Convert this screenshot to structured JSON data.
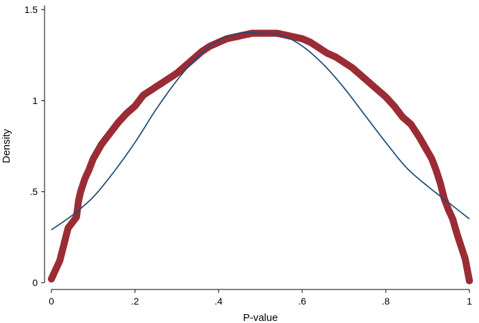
{
  "chart_data": {
    "type": "line",
    "title": "",
    "xlabel": "P-value",
    "ylabel": "Density",
    "xlim": [
      0,
      1
    ],
    "ylim": [
      0,
      1.5
    ],
    "xticks": [
      0,
      0.2,
      0.4,
      0.6,
      0.8,
      1
    ],
    "xtick_labels": [
      "0",
      ".2",
      ".4",
      ".6",
      ".8",
      "1"
    ],
    "yticks": [
      0,
      0.5,
      1,
      1.5
    ],
    "ytick_labels": [
      "0",
      ".5",
      "1",
      "1.5"
    ],
    "grid": false,
    "legend": "none",
    "series": [
      {
        "style": "markers",
        "color": "#9b2c35",
        "x": [
          0.0,
          0.01,
          0.02,
          0.03,
          0.04,
          0.05,
          0.06,
          0.065,
          0.07,
          0.08,
          0.09,
          0.1,
          0.12,
          0.14,
          0.16,
          0.18,
          0.2,
          0.22,
          0.24,
          0.26,
          0.28,
          0.3,
          0.32,
          0.34,
          0.36,
          0.38,
          0.4,
          0.42,
          0.44,
          0.46,
          0.48,
          0.5,
          0.52,
          0.54,
          0.56,
          0.58,
          0.6,
          0.62,
          0.64,
          0.66,
          0.68,
          0.7,
          0.72,
          0.74,
          0.76,
          0.78,
          0.8,
          0.82,
          0.84,
          0.86,
          0.88,
          0.9,
          0.91,
          0.92,
          0.93,
          0.94,
          0.95,
          0.96,
          0.97,
          0.98,
          0.99,
          1.0
        ],
        "y": [
          0.02,
          0.07,
          0.12,
          0.21,
          0.3,
          0.33,
          0.36,
          0.45,
          0.5,
          0.57,
          0.62,
          0.68,
          0.76,
          0.82,
          0.88,
          0.93,
          0.97,
          1.03,
          1.06,
          1.09,
          1.12,
          1.15,
          1.19,
          1.23,
          1.27,
          1.3,
          1.32,
          1.34,
          1.35,
          1.36,
          1.37,
          1.37,
          1.37,
          1.37,
          1.36,
          1.35,
          1.34,
          1.32,
          1.29,
          1.26,
          1.24,
          1.21,
          1.18,
          1.14,
          1.1,
          1.06,
          1.02,
          0.97,
          0.91,
          0.87,
          0.8,
          0.72,
          0.68,
          0.62,
          0.55,
          0.46,
          0.4,
          0.35,
          0.27,
          0.2,
          0.13,
          0.01
        ]
      },
      {
        "style": "line",
        "color": "#1f4e79",
        "x": [
          0.0,
          0.05,
          0.1,
          0.15,
          0.2,
          0.25,
          0.3,
          0.35,
          0.4,
          0.45,
          0.5,
          0.55,
          0.6,
          0.65,
          0.7,
          0.75,
          0.8,
          0.85,
          0.9,
          0.95,
          1.0
        ],
        "y": [
          0.29,
          0.37,
          0.47,
          0.61,
          0.77,
          0.95,
          1.11,
          1.24,
          1.33,
          1.37,
          1.37,
          1.36,
          1.3,
          1.2,
          1.07,
          0.92,
          0.77,
          0.63,
          0.53,
          0.44,
          0.35
        ]
      }
    ]
  }
}
